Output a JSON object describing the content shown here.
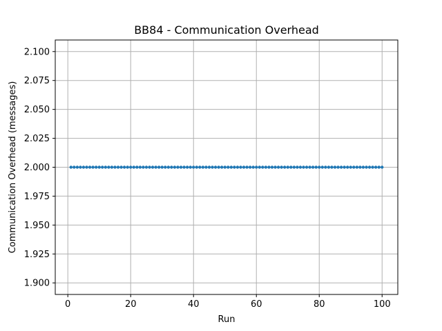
{
  "chart_data": {
    "type": "line",
    "title": "BB84 - Communication Overhead",
    "xlabel": "Run",
    "ylabel": "Communication Overhead (messages)",
    "xlim": [
      -4.0,
      105.0
    ],
    "ylim": [
      1.89,
      2.11
    ],
    "xticks": [
      0,
      20,
      40,
      60,
      80,
      100
    ],
    "xtick_labels": [
      "0",
      "20",
      "40",
      "60",
      "80",
      "100"
    ],
    "yticks": [
      1.9,
      1.925,
      1.95,
      1.975,
      2.0,
      2.025,
      2.05,
      2.075,
      2.1
    ],
    "ytick_labels": [
      "1.900",
      "1.925",
      "1.950",
      "1.975",
      "2.000",
      "2.025",
      "2.050",
      "2.075",
      "2.100"
    ],
    "grid": true,
    "marker": "circle",
    "color": "#1f77b4",
    "series": [
      {
        "x_start": 1,
        "x_end": 100,
        "step": 1,
        "value": 2.0
      }
    ]
  }
}
